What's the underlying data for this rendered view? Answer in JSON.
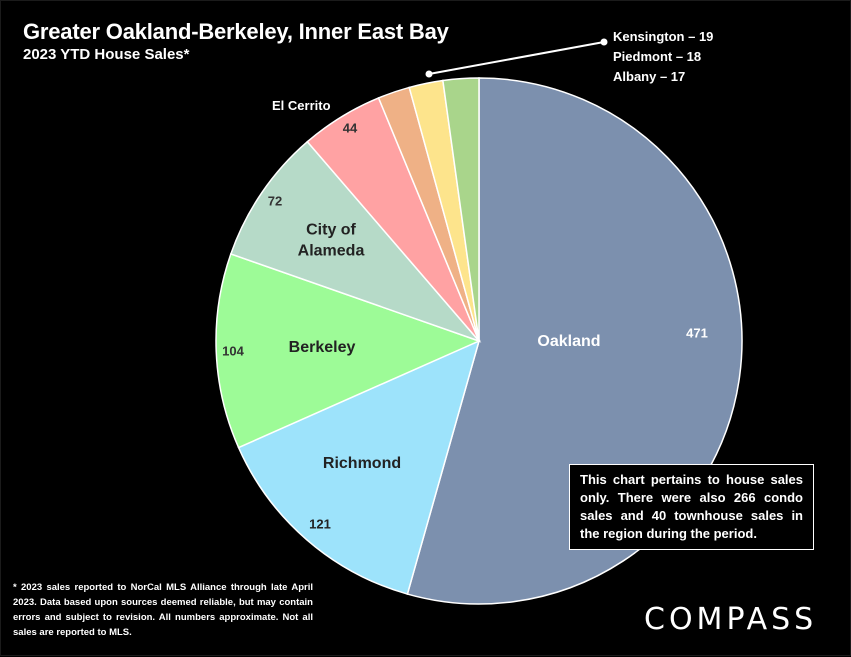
{
  "header": {
    "title": "Greater Oakland-Berkeley, Inner East Bay",
    "subtitle": "2023 YTD House Sales*"
  },
  "chart_data": {
    "type": "pie",
    "title": "Greater Oakland-Berkeley, Inner East Bay",
    "subtitle": "2023 YTD House Sales*",
    "slices": [
      {
        "name": "Oakland",
        "value": 471,
        "color": "#7c90ae",
        "name_color": "#ffffff",
        "value_color": "#ffffff"
      },
      {
        "name": "Richmond",
        "value": 121,
        "color": "#9de3fb",
        "name_color": "#222222",
        "value_color": "#222222"
      },
      {
        "name": "Berkeley",
        "value": 104,
        "color": "#9dfb97",
        "name_color": "#222222",
        "value_color": "#333333"
      },
      {
        "name": "City of Alameda",
        "value": 72,
        "color": "#b6dac8",
        "name_color": "#222222",
        "value_color": "#333333"
      },
      {
        "name": "El Cerrito",
        "value": 44,
        "color": "#ffa2a3",
        "name_color": "#ffffff",
        "value_color": "#333333"
      },
      {
        "name": "Albany",
        "value": 17,
        "color": "#efb186",
        "name_color": "#ffffff",
        "value_color": "#ffffff"
      },
      {
        "name": "Piedmont",
        "value": 18,
        "color": "#fde48c",
        "name_color": "#ffffff",
        "value_color": "#ffffff"
      },
      {
        "name": "Kensington",
        "value": 19,
        "color": "#a9d58b",
        "name_color": "#ffffff",
        "value_color": "#ffffff"
      }
    ],
    "slice_labels": [
      {
        "lines": [
          "Oakland"
        ],
        "color": "#ffffff"
      },
      {
        "lines": [
          "Richmond"
        ],
        "color": "#222222"
      },
      {
        "lines": [
          "Berkeley"
        ],
        "color": "#222222"
      },
      {
        "lines": [
          "City of",
          "Alameda"
        ],
        "color": "#222222"
      }
    ],
    "value_labels": [
      "471",
      "121",
      "104",
      "72",
      "44"
    ],
    "outside_labels": {
      "el_cerrito": "El Cerrito",
      "callout": [
        "Kensington – 19",
        "Piedmont – 18",
        "Albany – 17"
      ]
    },
    "legend": "none"
  },
  "note": "This chart pertains to house sales only. There were also 266 condo sales and 40 townhouse sales in the region during the period.",
  "footnote": "* 2023 sales reported to NorCal MLS Alliance through late April 2023. Data based upon sources deemed reliable, but may contain errors and subject to revision. All numbers approximate. Not all sales are reported to MLS.",
  "logo": "COMPASS"
}
